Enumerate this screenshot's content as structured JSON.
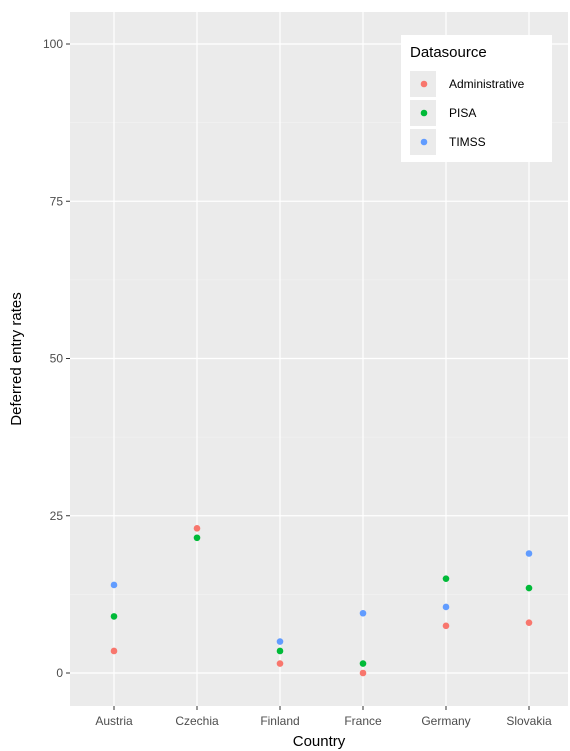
{
  "chart_data": {
    "type": "scatter",
    "title": "",
    "xlabel": "Country",
    "ylabel": "Deferred entry rates",
    "categories": [
      "Austria",
      "Czechia",
      "Finland",
      "France",
      "Germany",
      "Slovakia"
    ],
    "ylim": [
      0,
      100
    ],
    "yticks": [
      0,
      25,
      50,
      75,
      100
    ],
    "grid": true,
    "legend": {
      "title": "Datasource",
      "placement": "top-right"
    },
    "series": [
      {
        "name": "Administrative",
        "color": "#F8766D",
        "values": [
          3.5,
          23,
          1.5,
          0,
          7.5,
          8
        ]
      },
      {
        "name": "PISA",
        "color": "#00BA38",
        "values": [
          9,
          21.5,
          3.5,
          1.5,
          15,
          13.5
        ]
      },
      {
        "name": "TIMSS",
        "color": "#619CFF",
        "values": [
          14,
          null,
          5,
          9.5,
          10.5,
          19
        ]
      }
    ]
  }
}
